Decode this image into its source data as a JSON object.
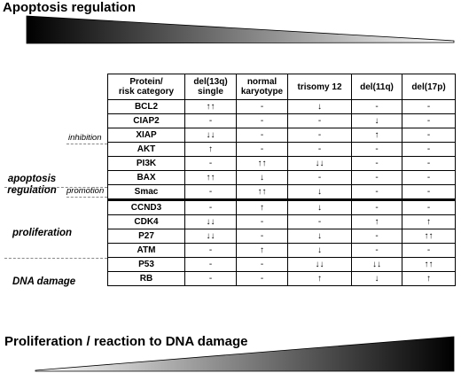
{
  "titles": {
    "top": "Apoptosis regulation",
    "bottom": "Proliferation / reaction to DNA damage"
  },
  "side_labels": {
    "inhibition": "inhibition",
    "apoptosis_regulation": "apoptosis\nregulation",
    "promotion": "promotion",
    "proliferation": "proliferation",
    "dna_damage": "DNA damage"
  },
  "table": {
    "header": [
      "Protein/\nrisk category",
      "del(13q)\nsingle",
      "normal\nkaryotype",
      "trisomy 12",
      "del(11q)",
      "del(17p)"
    ],
    "rows": [
      {
        "protein": "BCL2",
        "values": [
          "↑↑",
          "-",
          "↓",
          "-",
          "-"
        ]
      },
      {
        "protein": "CIAP2",
        "values": [
          "-",
          "-",
          "-",
          "↓",
          "-"
        ]
      },
      {
        "protein": "XIAP",
        "values": [
          "↓↓",
          "-",
          "-",
          "↑",
          "-"
        ]
      },
      {
        "protein": "AKT",
        "values": [
          "↑",
          "-",
          "-",
          "-",
          "-"
        ]
      },
      {
        "protein": "PI3K",
        "values": [
          "-",
          "↑↑",
          "↓↓",
          "-",
          "-"
        ]
      },
      {
        "protein": "BAX",
        "values": [
          "↑↑",
          "↓",
          "-",
          "-",
          "-"
        ]
      },
      {
        "protein": "Smac",
        "values": [
          "-",
          "↑↑",
          "↓",
          "-",
          "-"
        ]
      },
      {
        "protein": "CCND3",
        "values": [
          "-",
          "↑",
          "↓",
          "-",
          "-"
        ]
      },
      {
        "protein": "CDK4",
        "values": [
          "↓↓",
          "-",
          "-",
          "↑",
          "↑"
        ]
      },
      {
        "protein": "P27",
        "values": [
          "↓↓",
          "-",
          "↓",
          "-",
          "↑↑"
        ]
      },
      {
        "protein": "ATM",
        "values": [
          "-",
          "↑",
          "↓",
          "-",
          "-"
        ]
      },
      {
        "protein": "P53",
        "values": [
          "-",
          "-",
          "↓↓",
          "↓↓",
          "↑↑"
        ]
      },
      {
        "protein": "RB",
        "values": [
          "-",
          "-",
          "↑",
          "↓",
          "↑"
        ]
      }
    ]
  }
}
